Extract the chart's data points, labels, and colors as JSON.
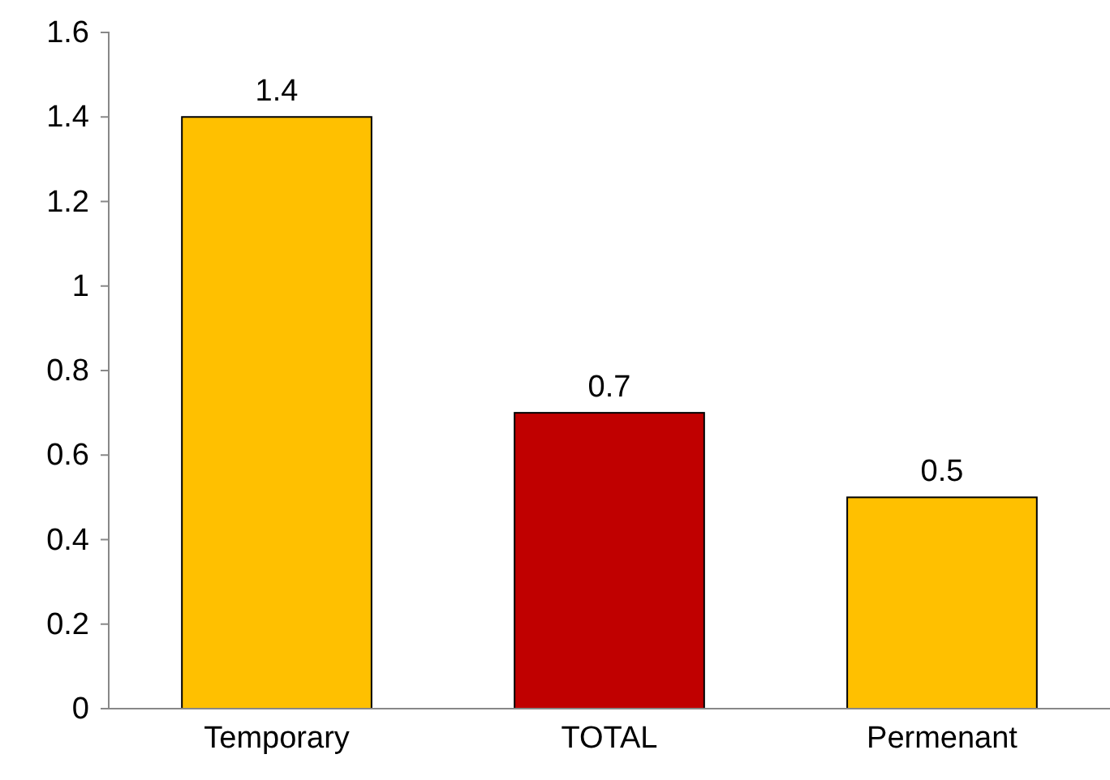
{
  "chart_data": {
    "type": "bar",
    "categories": [
      "Temporary",
      "TOTAL",
      "Permenant"
    ],
    "values": [
      1.4,
      0.7,
      0.5
    ],
    "colors": [
      "#ffc000",
      "#c00000",
      "#ffc000"
    ],
    "ylim": [
      0,
      1.6
    ],
    "yticks": [
      0,
      0.2,
      0.4,
      0.6,
      0.8,
      1,
      1.2,
      1.4,
      1.6
    ],
    "data_labels": true
  }
}
